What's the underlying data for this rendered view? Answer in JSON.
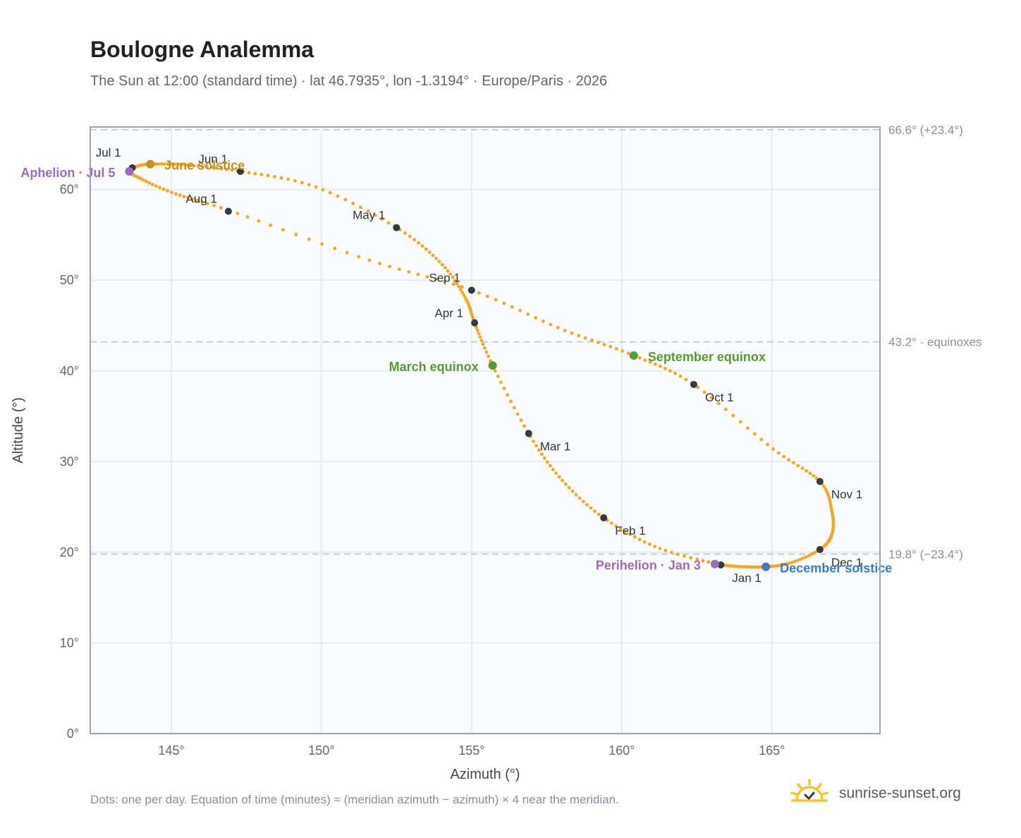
{
  "header": {
    "title": "Boulogne Analemma",
    "subtitle": "The Sun at 12:00 (standard time) · lat 46.7935°, lon -1.3194° · Europe/Paris · 2026"
  },
  "footer": {
    "note": "Dots: one per day. Equation of time (minutes) ≈ (meridian azimuth − azimuth) × 4 near the meridian.",
    "brand": "sunrise-sunset.org"
  },
  "colors": {
    "path": "#f5a623",
    "month_marker": "#333a44",
    "equinox": "#5a9a32",
    "june_solstice": "#c8901a",
    "december_solstice": "#3a7bc8",
    "apsis": "#9b6bbd",
    "reference_line": "#b8c2cc",
    "frame": "#9aa5b4",
    "plot_background": "#f9fbfd",
    "grid": "#e3e7ec"
  },
  "chart_data": {
    "type": "scatter",
    "title": "Boulogne Analemma",
    "xlabel": "Azimuth (°)",
    "ylabel": "Altitude (°)",
    "xlim": [
      142.3,
      168.6
    ],
    "ylim": [
      0,
      66.9
    ],
    "x_ticks": [
      {
        "value": 145,
        "label": "145°"
      },
      {
        "value": 150,
        "label": "150°"
      },
      {
        "value": 155,
        "label": "155°"
      },
      {
        "value": 160,
        "label": "160°"
      },
      {
        "value": 165,
        "label": "165°"
      }
    ],
    "y_ticks": [
      {
        "value": 0,
        "label": "0°"
      },
      {
        "value": 10,
        "label": "10°"
      },
      {
        "value": 20,
        "label": "20°"
      },
      {
        "value": 30,
        "label": "30°"
      },
      {
        "value": 40,
        "label": "40°"
      },
      {
        "value": 50,
        "label": "50°"
      },
      {
        "value": 60,
        "label": "60°"
      }
    ],
    "grid": true,
    "reference_lines": [
      {
        "altitude": 66.6,
        "label": "66.6° (+23.4°)"
      },
      {
        "altitude": 43.2,
        "label": "43.2° · equinoxes"
      },
      {
        "altitude": 19.8,
        "label": "19.8° (−23.4°)"
      }
    ],
    "path_keypoints": [
      [
        163.3,
        18.6
      ],
      [
        164.0,
        18.4
      ],
      [
        164.8,
        18.4
      ],
      [
        165.6,
        18.8
      ],
      [
        166.6,
        20.3
      ],
      [
        167.0,
        22.0
      ],
      [
        167.0,
        24.5
      ],
      [
        166.6,
        27.8
      ],
      [
        165.0,
        31.5
      ],
      [
        162.4,
        38.5
      ],
      [
        160.4,
        41.7
      ],
      [
        158.0,
        44.6
      ],
      [
        155.0,
        48.9
      ],
      [
        151.5,
        52.3
      ],
      [
        147.0,
        57.6
      ],
      [
        145.0,
        59.7
      ],
      [
        143.8,
        61.5
      ],
      [
        143.6,
        62.0
      ],
      [
        143.8,
        62.5
      ],
      [
        144.3,
        62.8
      ],
      [
        145.5,
        62.7
      ],
      [
        147.3,
        62.0
      ],
      [
        149.8,
        60.3
      ],
      [
        152.5,
        55.8
      ],
      [
        154.0,
        51.8
      ],
      [
        154.8,
        48.0
      ],
      [
        155.1,
        45.3
      ],
      [
        155.7,
        40.6
      ],
      [
        156.9,
        33.1
      ],
      [
        158.0,
        28.0
      ],
      [
        159.4,
        23.8
      ],
      [
        161.2,
        20.5
      ],
      [
        163.3,
        18.6
      ]
    ],
    "month_markers": [
      {
        "label": "Jan 1",
        "x": 163.3,
        "y": 18.6
      },
      {
        "label": "Feb 1",
        "x": 159.4,
        "y": 23.8
      },
      {
        "label": "Mar 1",
        "x": 156.9,
        "y": 33.1
      },
      {
        "label": "Apr 1",
        "x": 155.1,
        "y": 45.3
      },
      {
        "label": "May 1",
        "x": 152.5,
        "y": 55.8
      },
      {
        "label": "Jun 1",
        "x": 147.3,
        "y": 62.0
      },
      {
        "label": "Jul 1",
        "x": 143.7,
        "y": 62.4
      },
      {
        "label": "Aug 1",
        "x": 146.9,
        "y": 57.6
      },
      {
        "label": "Sep 1",
        "x": 155.0,
        "y": 48.9
      },
      {
        "label": "Oct 1",
        "x": 162.4,
        "y": 38.5
      },
      {
        "label": "Nov 1",
        "x": 166.6,
        "y": 27.8
      },
      {
        "label": "Dec 1",
        "x": 166.6,
        "y": 20.3
      }
    ],
    "events": [
      {
        "label": "March equinox",
        "x": 155.7,
        "y": 40.6,
        "kind": "equinox"
      },
      {
        "label": "September equinox",
        "x": 160.4,
        "y": 41.7,
        "kind": "equinox"
      },
      {
        "label": "June solstice",
        "x": 144.3,
        "y": 62.8,
        "kind": "june_solstice"
      },
      {
        "label": "December solstice",
        "x": 164.8,
        "y": 18.4,
        "kind": "december_solstice"
      },
      {
        "label": "Aphelion · Jul 5",
        "x": 143.6,
        "y": 62.0,
        "kind": "apsis"
      },
      {
        "label": "Perihelion · Jan 3",
        "x": 163.1,
        "y": 18.7,
        "kind": "apsis"
      }
    ]
  }
}
